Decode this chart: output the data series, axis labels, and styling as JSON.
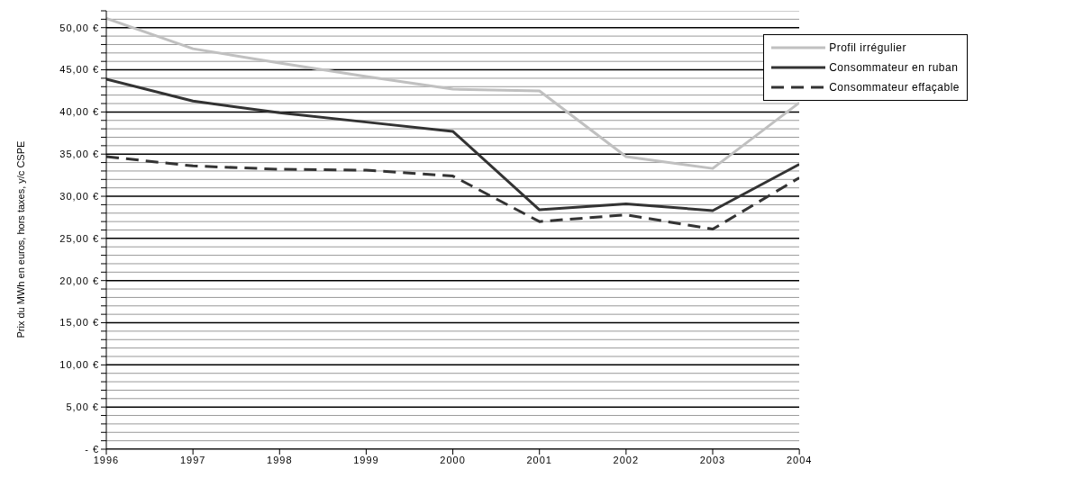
{
  "chart_data": {
    "type": "line",
    "ylabel": "Prix du MWh en euros, hors taxes, y/c CSPE",
    "categories": [
      "1996",
      "1997",
      "1998",
      "1999",
      "2000",
      "2001",
      "2002",
      "2003",
      "2004"
    ],
    "series": [
      {
        "name": "Profil irrégulier",
        "color": "#c0c0c0",
        "values": [
          51.1,
          47.5,
          45.8,
          44.2,
          42.7,
          42.5,
          34.7,
          33.3,
          41.1
        ]
      },
      {
        "name": "Consommateur en ruban",
        "color": "#333333",
        "values": [
          43.9,
          41.3,
          39.9,
          38.8,
          37.7,
          28.4,
          29.1,
          28.3,
          33.8
        ]
      },
      {
        "name": "Consommateur effaçable",
        "color": "#333333",
        "line_style": "dashed",
        "values": [
          34.7,
          33.6,
          33.2,
          33.1,
          32.4,
          27.0,
          27.8,
          26.1,
          32.2
        ]
      }
    ],
    "ylim": [
      0,
      52
    ],
    "yticks": [
      {
        "value": 0,
        "label": "-   €"
      },
      {
        "value": 1,
        "label": null
      },
      {
        "value": 2,
        "label": null
      },
      {
        "value": 3,
        "label": null
      },
      {
        "value": 4,
        "label": null
      },
      {
        "value": 5,
        "label": "5,00 €"
      },
      {
        "value": 6,
        "label": null
      },
      {
        "value": 7,
        "label": null
      },
      {
        "value": 8,
        "label": null
      },
      {
        "value": 9,
        "label": null
      },
      {
        "value": 10,
        "label": "10,00 €"
      },
      {
        "value": 11,
        "label": null
      },
      {
        "value": 12,
        "label": null
      },
      {
        "value": 13,
        "label": null
      },
      {
        "value": 14,
        "label": null
      },
      {
        "value": 15,
        "label": "15,00 €"
      },
      {
        "value": 16,
        "label": null
      },
      {
        "value": 17,
        "label": null
      },
      {
        "value": 18,
        "label": null
      },
      {
        "value": 19,
        "label": null
      },
      {
        "value": 20,
        "label": "20,00 €"
      },
      {
        "value": 21,
        "label": null
      },
      {
        "value": 22,
        "label": null
      },
      {
        "value": 23,
        "label": null
      },
      {
        "value": 24,
        "label": null
      },
      {
        "value": 25,
        "label": "25,00 €"
      },
      {
        "value": 26,
        "label": null
      },
      {
        "value": 27,
        "label": null
      },
      {
        "value": 28,
        "label": null
      },
      {
        "value": 29,
        "label": null
      },
      {
        "value": 30,
        "label": "30,00 €"
      },
      {
        "value": 31,
        "label": null
      },
      {
        "value": 32,
        "label": null
      },
      {
        "value": 33,
        "label": null
      },
      {
        "value": 34,
        "label": null
      },
      {
        "value": 35,
        "label": "35,00 €"
      },
      {
        "value": 36,
        "label": null
      },
      {
        "value": 37,
        "label": null
      },
      {
        "value": 38,
        "label": null
      },
      {
        "value": 39,
        "label": null
      },
      {
        "value": 40,
        "label": "40,00 €"
      },
      {
        "value": 41,
        "label": null
      },
      {
        "value": 42,
        "label": null
      },
      {
        "value": 43,
        "label": null
      },
      {
        "value": 44,
        "label": null
      },
      {
        "value": 45,
        "label": "45,00 €"
      },
      {
        "value": 46,
        "label": null
      },
      {
        "value": 47,
        "label": null
      },
      {
        "value": 48,
        "label": null
      },
      {
        "value": 49,
        "label": null
      },
      {
        "value": 50,
        "label": "50,00 €"
      },
      {
        "value": 51,
        "label": null
      },
      {
        "value": 52,
        "label": null
      }
    ],
    "grid": "y",
    "legend": "top right",
    "marker": "none",
    "line_style": "solid"
  }
}
